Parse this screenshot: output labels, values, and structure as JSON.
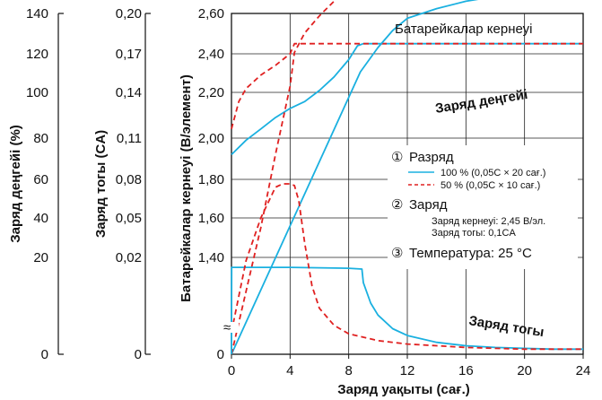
{
  "chart_data": {
    "type": "line",
    "xlabel": "Заряд уақыты (сағ.)",
    "x_ticks": [
      "0",
      "4",
      "8",
      "12",
      "16",
      "20",
      "24"
    ],
    "xlim": [
      0,
      24
    ],
    "y_axes": [
      {
        "label": "Заряд деңгейі (%)",
        "ticks": [
          "0",
          "20",
          "40",
          "60",
          "80",
          "100",
          "120",
          "140"
        ]
      },
      {
        "label": "Заряд тогы (CA)",
        "ticks": [
          "0",
          "0,02",
          "0,05",
          "0,08",
          "0,11",
          "0,14",
          "0,17",
          "0,20"
        ]
      },
      {
        "label": "Батарейкалар кернеуі (В/элемент)",
        "ticks": [
          "0",
          "1,40",
          "1,60",
          "1,80",
          "2,00",
          "2,20",
          "2,40",
          "2,60"
        ]
      }
    ],
    "grid": true,
    "series": [
      {
        "name": "Батарейкалар кернеуі",
        "style": "solid",
        "color": "#1ab0e0",
        "axis": "voltage",
        "x": [
          0,
          1,
          2,
          3,
          4,
          5,
          6,
          7,
          8,
          8.6,
          9,
          12,
          16,
          20,
          24
        ],
        "y": [
          1.92,
          1.99,
          2.04,
          2.09,
          2.13,
          2.16,
          2.21,
          2.28,
          2.37,
          2.44,
          2.45,
          2.45,
          2.45,
          2.45,
          2.45
        ]
      },
      {
        "name": "Батарейкалар кернеуі",
        "style": "dashed",
        "color": "#e02020",
        "axis": "voltage",
        "x": [
          0,
          0.5,
          1,
          2,
          3,
          4,
          4.3,
          6,
          8,
          9,
          12,
          16,
          20,
          24
        ],
        "y": [
          2.04,
          2.16,
          2.22,
          2.29,
          2.34,
          2.4,
          2.45,
          2.45,
          2.45,
          2.45,
          2.45,
          2.45,
          2.45,
          2.45
        ]
      },
      {
        "name": "Заряд деңгейі",
        "style": "solid",
        "color": "#1ab0e0",
        "axis": "capacity",
        "x": [
          0,
          8.8,
          10,
          11,
          12,
          14,
          16,
          18,
          20,
          22,
          24
        ],
        "y": [
          0,
          116,
          126,
          133,
          138,
          142,
          145,
          147,
          148,
          149,
          150
        ]
      },
      {
        "name": "Заряд деңгейі",
        "style": "dashed",
        "color": "#e02020",
        "axis": "capacity",
        "x": [
          0,
          2,
          3,
          4,
          4.3,
          5,
          6,
          7,
          8,
          10,
          12,
          16,
          20,
          24
        ],
        "y": [
          0,
          52,
          82,
          110,
          124,
          132,
          139,
          145,
          150,
          154,
          157,
          161,
          164,
          167
        ]
      },
      {
        "name": "Заряд тогы",
        "style": "solid",
        "color": "#1ab0e0",
        "axis": "current",
        "x": [
          0,
          0.01,
          4,
          8,
          8.9,
          9,
          9.5,
          10,
          11,
          12,
          14,
          16,
          18,
          20,
          22,
          24
        ],
        "y": [
          0,
          0.051,
          0.051,
          0.0505,
          0.05,
          0.042,
          0.03,
          0.023,
          0.015,
          0.011,
          0.007,
          0.005,
          0.004,
          0.0035,
          0.003,
          0.003
        ]
      },
      {
        "name": "Заряд тогы",
        "style": "dashed",
        "color": "#e02020",
        "axis": "current",
        "x": [
          0,
          1,
          2,
          3,
          3.5,
          4,
          4.3,
          4.6,
          5,
          5.5,
          6,
          7,
          8,
          10,
          12,
          14,
          16,
          20,
          24
        ],
        "y": [
          0.013,
          0.055,
          0.08,
          0.098,
          0.1,
          0.1,
          0.099,
          0.09,
          0.065,
          0.04,
          0.027,
          0.017,
          0.012,
          0.008,
          0.006,
          0.005,
          0.004,
          0.003,
          0.003
        ]
      }
    ],
    "annotations": {
      "voltage_label": "Батарейкалар кернеуі",
      "level_label": "Заряд деңгейі",
      "current_label": "Заряд тогы",
      "break_mark": "≈",
      "legend": {
        "discharge_num": "①",
        "discharge_title": "Разряд",
        "item1": "100 % (0,05C × 20 сағ.)",
        "item2": "50 % (0,05C × 10 сағ.)",
        "charge_num": "②",
        "charge_title": "Заряд",
        "charge_voltage": "Заряд кернеуі: 2,45 В/эл.",
        "charge_current": "Заряд тогы: 0,1CA",
        "temp_num": "③",
        "temp_text": "Температура: 25 °C"
      }
    }
  }
}
